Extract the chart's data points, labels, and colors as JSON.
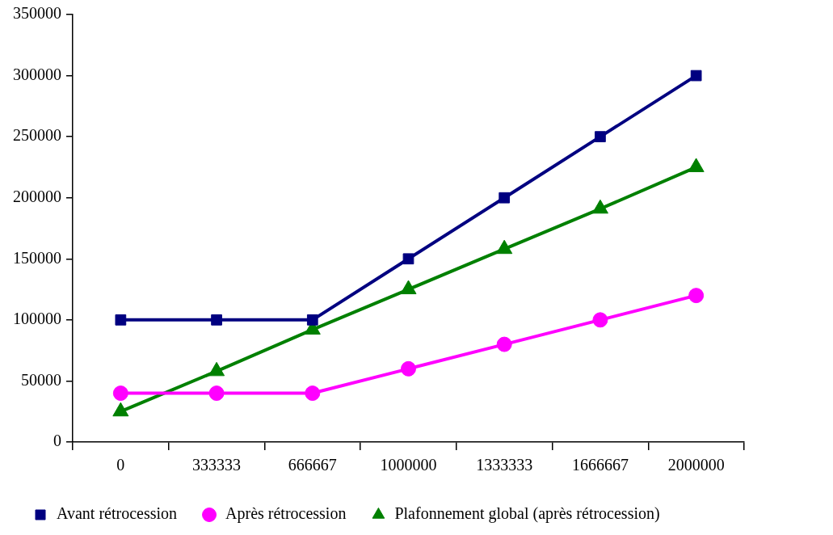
{
  "chart_data": {
    "type": "line",
    "categories": [
      "0",
      "333333",
      "666667",
      "1000000",
      "1333333",
      "1666667",
      "2000000"
    ],
    "series": [
      {
        "name": "Avant rétrocession",
        "color": "#000080",
        "marker": "square",
        "values": [
          100000,
          100000,
          100000,
          150000,
          200000,
          250000,
          300000
        ]
      },
      {
        "name": "Après rétrocession",
        "color": "#ff00ff",
        "marker": "circle",
        "values": [
          40000,
          40000,
          40000,
          60000,
          80000,
          100000,
          120000
        ]
      },
      {
        "name": "Plafonnement global (après rétrocession)",
        "color": "#008000",
        "marker": "triangle",
        "values": [
          25000,
          58000,
          92000,
          125000,
          158000,
          191000,
          225000
        ]
      }
    ],
    "ylim": [
      0,
      350000
    ],
    "yticks": [
      0,
      50000,
      100000,
      150000,
      200000,
      250000,
      300000,
      350000
    ],
    "grid": false,
    "legend": "bottom",
    "line_style": "solid"
  }
}
